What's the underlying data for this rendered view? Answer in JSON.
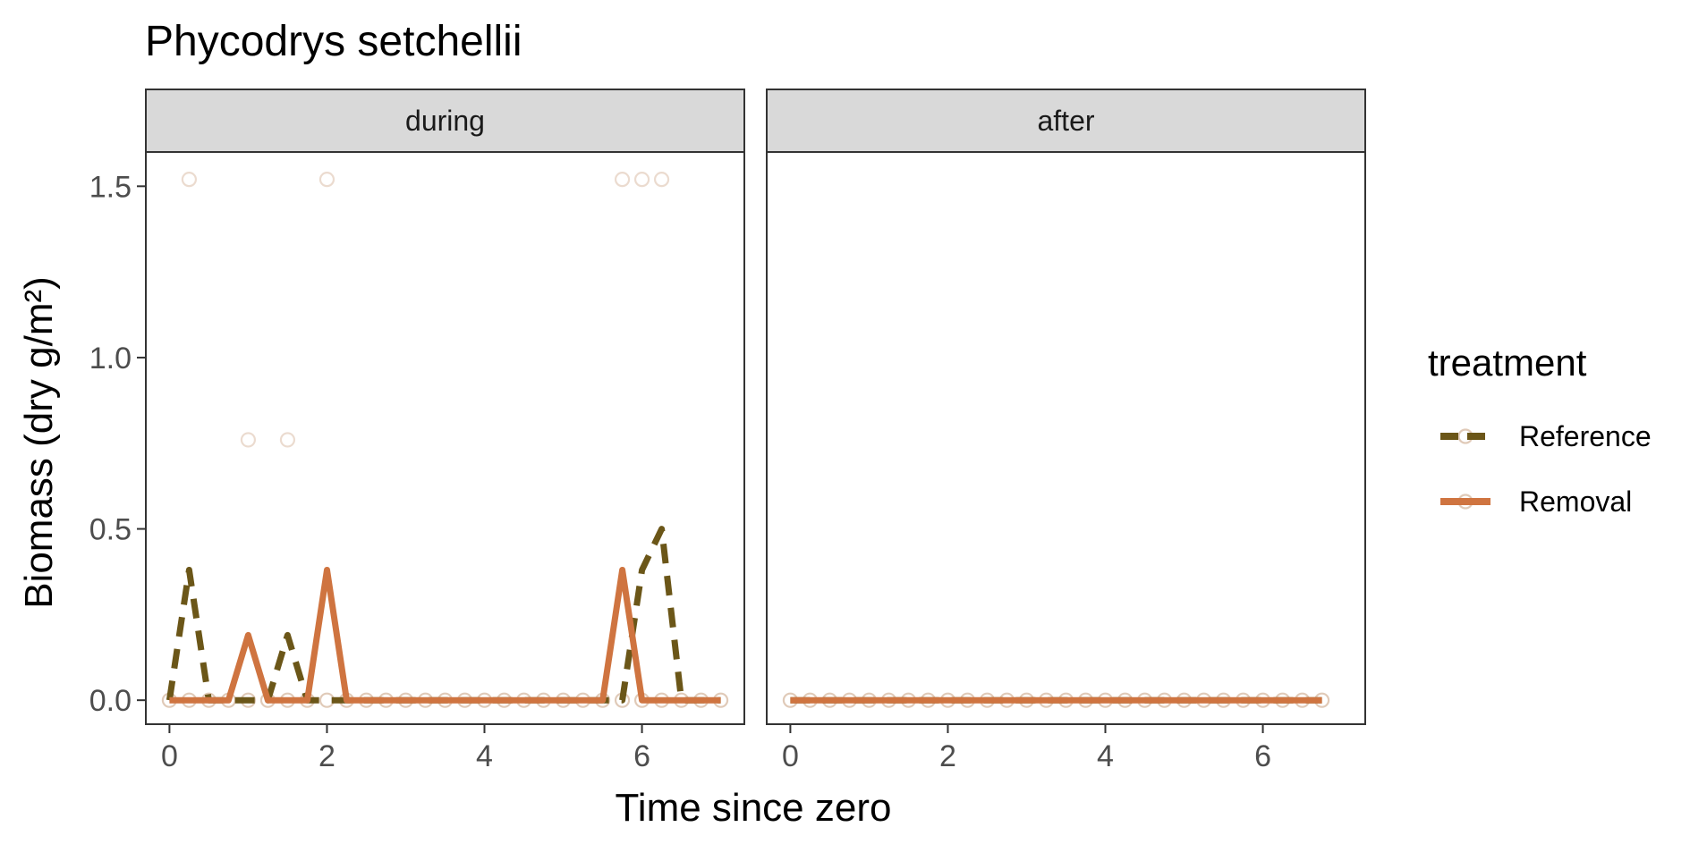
{
  "chart_data": {
    "type": "line",
    "title": "Phycodrys setchellii",
    "xlabel": "Time since zero",
    "ylabel": "Biomass (dry g/m²)",
    "ylim": [
      -0.07,
      1.6
    ],
    "y_ticks": [
      "0.0",
      "0.5",
      "1.0",
      "1.5"
    ],
    "y_tick_values": [
      0,
      0.5,
      1.0,
      1.5
    ],
    "x_ticks": [
      "0",
      "2",
      "4",
      "6"
    ],
    "x_tick_values": [
      0,
      2,
      4,
      6
    ],
    "legend": {
      "title": "treatment",
      "position": "right"
    },
    "colors": {
      "Reference": "#6b5618",
      "Removal": "#cf7440"
    },
    "panels": [
      {
        "label": "during",
        "xlim": [
          -0.3,
          7.3
        ],
        "series": [
          {
            "name": "Reference",
            "dash": "dashed",
            "x": [
              0,
              0.25,
              0.5,
              0.75,
              1,
              1.25,
              1.5,
              1.75,
              2,
              2.25,
              2.5,
              2.75,
              3,
              3.25,
              3.5,
              3.75,
              4,
              4.25,
              4.5,
              4.75,
              5,
              5.25,
              5.5,
              5.75,
              6,
              6.25,
              6.5,
              6.75,
              7
            ],
            "y": [
              0,
              0.38,
              0,
              0,
              0,
              0,
              0.19,
              0,
              0,
              0,
              0,
              0,
              0,
              0,
              0,
              0,
              0,
              0,
              0,
              0,
              0,
              0,
              0,
              0,
              0.38,
              0.5,
              0,
              0,
              0
            ]
          },
          {
            "name": "Removal",
            "dash": "solid",
            "x": [
              0,
              0.25,
              0.5,
              0.75,
              1,
              1.25,
              1.5,
              1.75,
              2,
              2.25,
              2.5,
              2.75,
              3,
              3.25,
              3.5,
              3.75,
              4,
              4.25,
              4.5,
              4.75,
              5,
              5.25,
              5.5,
              5.75,
              6,
              6.25,
              6.5,
              6.75,
              7
            ],
            "y": [
              0,
              0,
              0,
              0,
              0.19,
              0,
              0,
              0,
              0.38,
              0,
              0,
              0,
              0,
              0,
              0,
              0,
              0,
              0,
              0,
              0,
              0,
              0,
              0,
              0.38,
              0,
              0,
              0,
              0,
              0
            ]
          }
        ],
        "points": [
          {
            "x": [
              0.25,
              2,
              5.75,
              6,
              6.25
            ],
            "y": [
              1.52,
              1.52,
              1.52,
              1.52,
              1.52
            ]
          },
          {
            "x": [
              1,
              1.5
            ],
            "y": [
              0.76,
              0.76
            ]
          }
        ]
      },
      {
        "label": "after",
        "xlim": [
          -0.3,
          7.3
        ],
        "series": [
          {
            "name": "Reference",
            "dash": "dashed",
            "x": [
              0,
              0.25,
              0.5,
              0.75,
              1,
              1.25,
              1.5,
              1.75,
              2,
              2.25,
              2.5,
              2.75,
              3,
              3.25,
              3.5,
              3.75,
              4,
              4.25,
              4.5,
              4.75,
              5,
              5.25,
              5.5,
              5.75,
              6,
              6.25,
              6.5,
              6.75
            ],
            "y": [
              0,
              0,
              0,
              0,
              0,
              0,
              0,
              0,
              0,
              0,
              0,
              0,
              0,
              0,
              0,
              0,
              0,
              0,
              0,
              0,
              0,
              0,
              0,
              0,
              0,
              0,
              0,
              0
            ]
          },
          {
            "name": "Removal",
            "dash": "solid",
            "x": [
              0,
              0.25,
              0.5,
              0.75,
              1,
              1.25,
              1.5,
              1.75,
              2,
              2.25,
              2.5,
              2.75,
              3,
              3.25,
              3.5,
              3.75,
              4,
              4.25,
              4.5,
              4.75,
              5,
              5.25,
              5.5,
              5.75,
              6,
              6.25,
              6.5,
              6.75
            ],
            "y": [
              0,
              0,
              0,
              0,
              0,
              0,
              0,
              0,
              0,
              0,
              0,
              0,
              0,
              0,
              0,
              0,
              0,
              0,
              0,
              0,
              0,
              0,
              0,
              0,
              0,
              0,
              0,
              0
            ]
          }
        ],
        "points": []
      }
    ]
  }
}
